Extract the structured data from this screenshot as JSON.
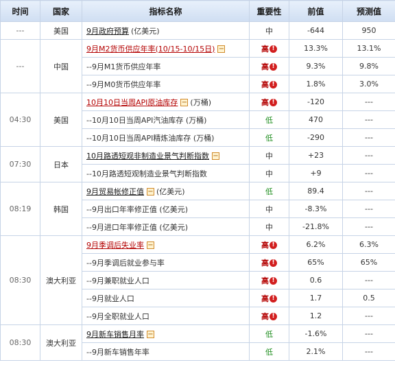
{
  "header": {
    "time": "时间",
    "country": "国家",
    "indicator": "指标名称",
    "importance": "重要性",
    "previous": "前值",
    "forecast": "预测值"
  },
  "groups": [
    {
      "time": "---",
      "country": "美国",
      "rows": [
        {
          "name": "9月政府预算",
          "unit": "(亿美元)",
          "style": "link",
          "expand": false,
          "importance": "中",
          "level": "mid",
          "previous": "-644",
          "forecast": "950"
        }
      ]
    },
    {
      "time": "---",
      "country": "中国",
      "rows": [
        {
          "name": "9月M2货币供应年率(10/15-10/15日)",
          "unit": "",
          "style": "red",
          "expand": true,
          "importance": "高",
          "level": "high",
          "previous": "13.3%",
          "forecast": "13.1%"
        },
        {
          "name": "--9月M1货币供应年率",
          "unit": "",
          "style": "plain",
          "expand": false,
          "importance": "高",
          "level": "high",
          "previous": "9.3%",
          "forecast": "9.8%"
        },
        {
          "name": "--9月M0货币供应年率",
          "unit": "",
          "style": "plain",
          "expand": false,
          "importance": "高",
          "level": "high",
          "previous": "1.8%",
          "forecast": "3.0%"
        }
      ]
    },
    {
      "time": "04:30",
      "country": "美国",
      "rows": [
        {
          "name": "10月10日当周API原油库存",
          "unit": "(万桶)",
          "style": "red",
          "expand": true,
          "importance": "高",
          "level": "high",
          "previous": "-120",
          "forecast": "---"
        },
        {
          "name": "--10月10日当周API汽油库存 (万桶)",
          "unit": "",
          "style": "plain",
          "expand": false,
          "importance": "低",
          "level": "low",
          "previous": "470",
          "forecast": "---"
        },
        {
          "name": "--10月10日当周API精炼油库存 (万桶)",
          "unit": "",
          "style": "plain",
          "expand": false,
          "importance": "低",
          "level": "low",
          "previous": "-290",
          "forecast": "---"
        }
      ]
    },
    {
      "time": "07:30",
      "country": "日本",
      "rows": [
        {
          "name": "10月路透短观非制造业景气判断指数",
          "unit": "",
          "style": "link",
          "expand": true,
          "importance": "中",
          "level": "mid",
          "previous": "+23",
          "forecast": "---"
        },
        {
          "name": "--10月路透短观制造业景气判断指数",
          "unit": "",
          "style": "plain",
          "expand": false,
          "importance": "中",
          "level": "mid",
          "previous": "+9",
          "forecast": "---"
        }
      ]
    },
    {
      "time": "08:19",
      "country": "韩国",
      "rows": [
        {
          "name": "9月贸易帐修正值",
          "unit": "(亿美元)",
          "style": "link",
          "expand": true,
          "importance": "低",
          "level": "low",
          "previous": "89.4",
          "forecast": "---"
        },
        {
          "name": "--9月出口年率修正值 (亿美元)",
          "unit": "",
          "style": "plain",
          "expand": false,
          "importance": "中",
          "level": "mid",
          "previous": "-8.3%",
          "forecast": "---"
        },
        {
          "name": "--9月进口年率修正值 (亿美元)",
          "unit": "",
          "style": "plain",
          "expand": false,
          "importance": "中",
          "level": "mid",
          "previous": "-21.8%",
          "forecast": "---"
        }
      ]
    },
    {
      "time": "08:30",
      "country": "澳大利亚",
      "rows": [
        {
          "name": "9月季调后失业率",
          "unit": "",
          "style": "red",
          "expand": true,
          "importance": "高",
          "level": "high",
          "previous": "6.2%",
          "forecast": "6.3%"
        },
        {
          "name": "--9月季调后就业参与率",
          "unit": "",
          "style": "plain",
          "expand": false,
          "importance": "高",
          "level": "high",
          "previous": "65%",
          "forecast": "65%"
        },
        {
          "name": "--9月兼职就业人口",
          "unit": "",
          "style": "plain",
          "expand": false,
          "importance": "高",
          "level": "high",
          "previous": "0.6",
          "forecast": "---"
        },
        {
          "name": "--9月就业人口",
          "unit": "",
          "style": "plain",
          "expand": false,
          "importance": "高",
          "level": "high",
          "previous": "1.7",
          "forecast": "0.5"
        },
        {
          "name": "--9月全职就业人口",
          "unit": "",
          "style": "plain",
          "expand": false,
          "importance": "高",
          "level": "high",
          "previous": "1.2",
          "forecast": "---"
        }
      ]
    },
    {
      "time": "08:30",
      "country": "澳大利亚",
      "rows": [
        {
          "name": "9月新车销售月率",
          "unit": "",
          "style": "link",
          "expand": true,
          "importance": "低",
          "level": "low",
          "previous": "-1.6%",
          "forecast": "---"
        },
        {
          "name": "--9月新车销售年率",
          "unit": "",
          "style": "plain",
          "expand": false,
          "importance": "低",
          "level": "low",
          "previous": "2.1%",
          "forecast": "---"
        }
      ]
    }
  ],
  "icons": {
    "collapse": "−",
    "alert": "!"
  },
  "colors": {
    "header_bg": "#cfdef2",
    "border": "#c6d3e6",
    "high": "#b30000",
    "low": "#1c8c1c"
  }
}
